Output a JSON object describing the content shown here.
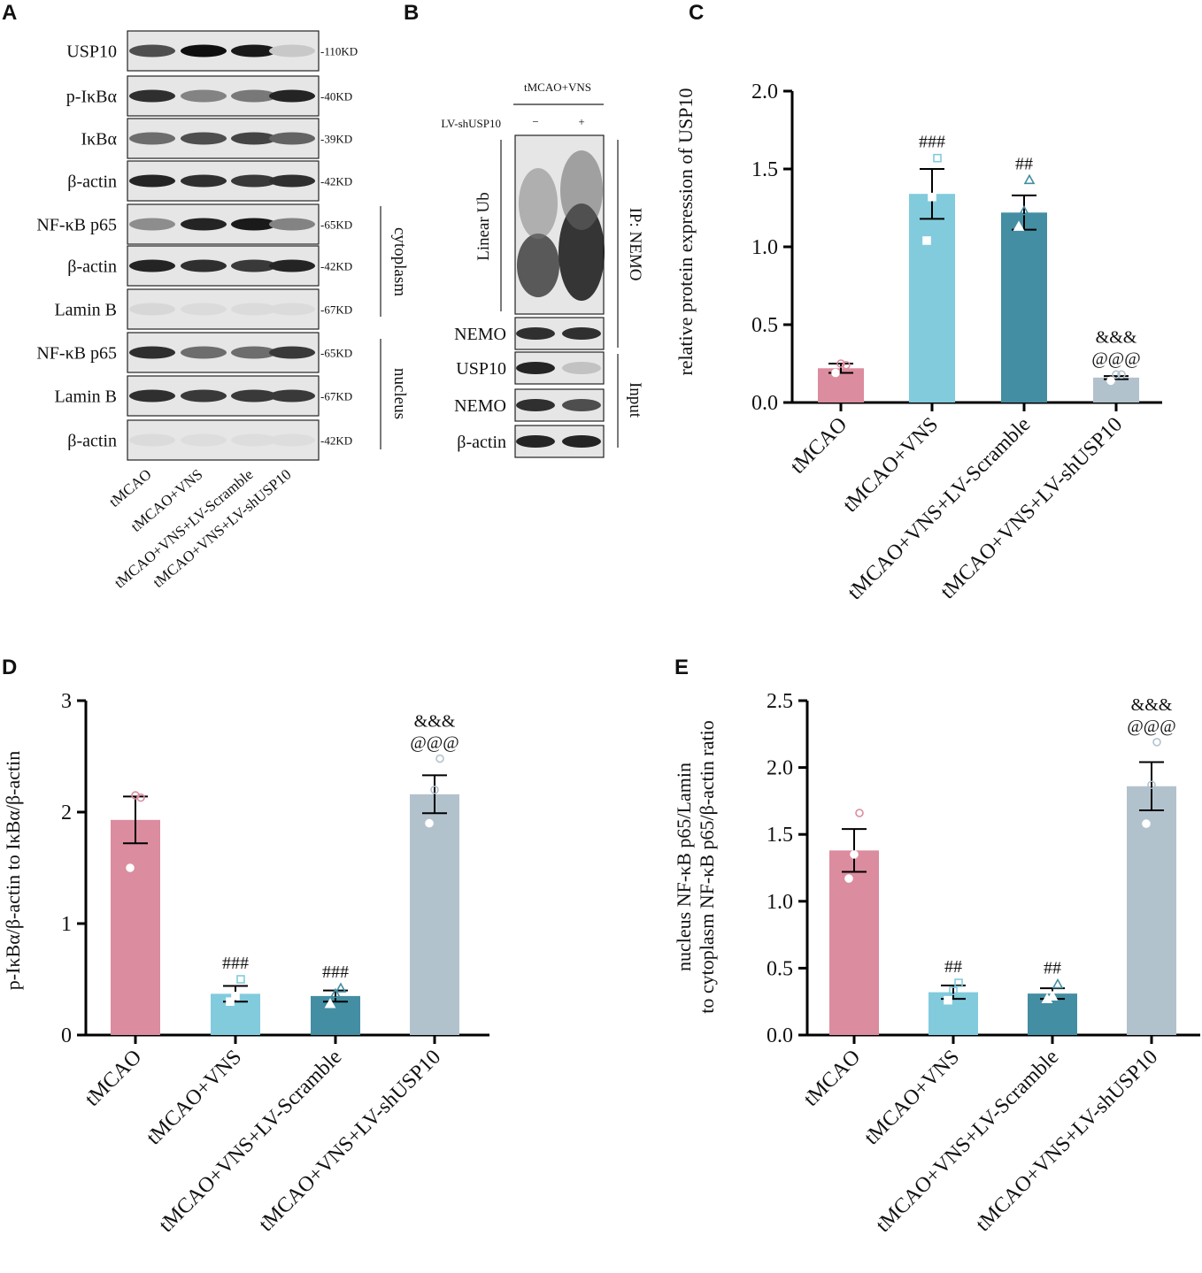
{
  "panel_letters": [
    "A",
    "B",
    "C",
    "D",
    "E"
  ],
  "group_labels": [
    "tMCAO",
    "tMCAO+VNS",
    "tMCAO+VNS+LV-Scramble",
    "tMCAO+VNS+LV-shUSP10"
  ],
  "colors": [
    "#db8c9e",
    "#82cbdd",
    "#438ea3",
    "#b2c2cd"
  ],
  "point_colors": [
    "#db8c9e",
    "#82cbdd",
    "#438ea3",
    "#b2c2cd"
  ],
  "blots_a": {
    "rows": [
      {
        "label": "USP10",
        "kd": "-110KD",
        "bands": [
          0.7,
          1.0,
          0.95,
          0.12
        ]
      },
      {
        "label": "p-IκBα",
        "kd": "-40KD",
        "bands": [
          0.85,
          0.45,
          0.5,
          0.9
        ]
      },
      {
        "label": "IκBα",
        "kd": "-39KD",
        "bands": [
          0.55,
          0.7,
          0.75,
          0.6
        ]
      },
      {
        "label": "β-actin",
        "kd": "-42KD",
        "bands": [
          0.9,
          0.85,
          0.8,
          0.85
        ]
      },
      {
        "label": "NF-κB p65",
        "kd": "-65KD",
        "bands": [
          0.4,
          0.9,
          0.95,
          0.45
        ]
      },
      {
        "label": "β-actin",
        "kd": "-42KD",
        "bands": [
          0.9,
          0.85,
          0.8,
          0.9
        ]
      },
      {
        "label": "Lamin B",
        "kd": "-67KD",
        "bands": [
          0.05,
          0.03,
          0.03,
          0.03
        ]
      },
      {
        "label": "NF-κB p65",
        "kd": "-65KD",
        "bands": [
          0.85,
          0.55,
          0.55,
          0.8
        ]
      },
      {
        "label": "Lamin B",
        "kd": "-67KD",
        "bands": [
          0.85,
          0.8,
          0.8,
          0.8
        ]
      },
      {
        "label": "β-actin",
        "kd": "-42KD",
        "bands": [
          0.03,
          0.02,
          0.02,
          0.02
        ]
      }
    ],
    "fraction_labels": [
      "cytoplasm",
      "nucleus"
    ]
  },
  "blots_b": {
    "condition": "tMCAO+VNS",
    "treatment_label": "LV-shUSP10",
    "lane_signs": [
      "−",
      "+"
    ],
    "ip_blot_label": "Linear Ub",
    "ip_label": "IP: NEMO",
    "input_label": "Input",
    "rows": [
      {
        "label": "NEMO",
        "bands": [
          0.85,
          0.85
        ]
      },
      {
        "label": "USP10",
        "bands": [
          0.9,
          0.15
        ]
      },
      {
        "label": "NEMO",
        "bands": [
          0.85,
          0.7
        ]
      },
      {
        "label": "β-actin",
        "bands": [
          0.9,
          0.9
        ]
      }
    ]
  },
  "chart_data": [
    {
      "type": "bar",
      "panel": "C",
      "ylabel": "relative protein expression of USP10",
      "ylim": [
        0,
        2.0
      ],
      "yticks": [
        "0.0",
        "0.5",
        "1.0",
        "1.5",
        "2.0"
      ],
      "categories": [
        "tMCAO",
        "tMCAO+VNS",
        "tMCAO+VNS+LV-Scramble",
        "tMCAO+VNS+LV-shUSP10"
      ],
      "values": [
        0.22,
        1.34,
        1.22,
        0.16
      ],
      "errors": [
        0.03,
        0.16,
        0.11,
        0.01
      ],
      "points": [
        [
          0.19,
          0.25,
          0.24
        ],
        [
          1.04,
          1.32,
          1.57
        ],
        [
          1.13,
          1.23,
          1.43
        ],
        [
          0.14,
          0.18,
          0.18
        ]
      ],
      "significance": [
        [],
        [
          "###"
        ],
        [
          "##"
        ],
        [
          "@@@",
          "&&&"
        ]
      ]
    },
    {
      "type": "bar",
      "panel": "D",
      "ylabel": "p-IκBα/β-actin to IκBα/β-actin",
      "ylim": [
        0,
        3
      ],
      "yticks": [
        "0",
        "1",
        "2",
        "3"
      ],
      "categories": [
        "tMCAO",
        "tMCAO+VNS",
        "tMCAO+VNS+LV-Scramble",
        "tMCAO+VNS+LV-shUSP10"
      ],
      "values": [
        1.93,
        0.37,
        0.35,
        2.16
      ],
      "errors": [
        0.21,
        0.07,
        0.05,
        0.17
      ],
      "points": [
        [
          1.5,
          2.15,
          2.13
        ],
        [
          0.3,
          0.35,
          0.5
        ],
        [
          0.28,
          0.37,
          0.42
        ],
        [
          1.9,
          2.2,
          2.48
        ]
      ],
      "significance": [
        [],
        [
          "###"
        ],
        [
          "###"
        ],
        [
          "@@@",
          "&&&"
        ]
      ]
    },
    {
      "type": "bar",
      "panel": "E",
      "ylabel": [
        "nucleus NF-κB p65/Lamin",
        "to cytoplasm NF-κB p65/β-actin ratio"
      ],
      "ylim": [
        0,
        2.5
      ],
      "yticks": [
        "0.0",
        "0.5",
        "1.0",
        "1.5",
        "2.0",
        "2.5"
      ],
      "categories": [
        "tMCAO",
        "tMCAO+VNS",
        "tMCAO+VNS+LV-Scramble",
        "tMCAO+VNS+LV-shUSP10"
      ],
      "values": [
        1.38,
        0.32,
        0.31,
        1.86
      ],
      "errors": [
        0.16,
        0.05,
        0.04,
        0.18
      ],
      "points": [
        [
          1.17,
          1.35,
          1.66
        ],
        [
          0.26,
          0.33,
          0.39
        ],
        [
          0.27,
          0.29,
          0.38
        ],
        [
          1.58,
          1.87,
          2.19
        ]
      ],
      "significance": [
        [],
        [
          "##"
        ],
        [
          "##"
        ],
        [
          "@@@",
          "&&&"
        ]
      ]
    }
  ]
}
